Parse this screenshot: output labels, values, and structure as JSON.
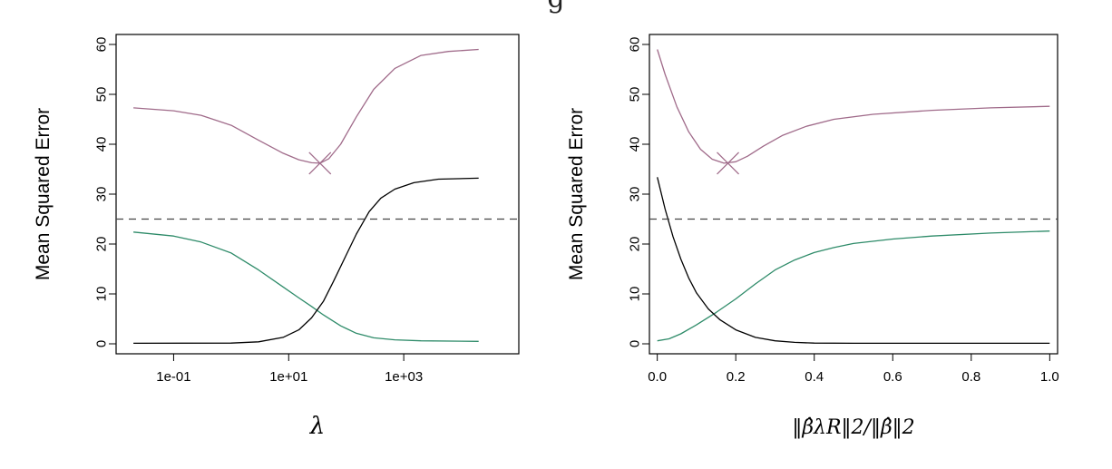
{
  "header": {
    "text": "g"
  },
  "chart_data": [
    {
      "type": "line",
      "xscale": "log",
      "xlabel": "λ",
      "ylabel": "Mean Squared Error",
      "xlim": [
        0.01,
        100000
      ],
      "ylim": [
        -2,
        62
      ],
      "x_ticks": [
        0.1,
        10,
        1000
      ],
      "x_tick_labels": [
        "1e-01",
        "1e+01",
        "1e+03"
      ],
      "y_ticks": [
        0,
        10,
        20,
        30,
        40,
        50,
        60
      ],
      "y_tick_labels": [
        "0",
        "10",
        "20",
        "30",
        "40",
        "50",
        "60"
      ],
      "colors": {
        "test_mse": "#a06b8a",
        "variance": "#2e8b69",
        "bias": "#000000",
        "reference": "#444444"
      },
      "series": [
        {
          "color_key": "test_mse",
          "x": [
            0.02,
            0.1,
            0.3,
            1,
            3,
            8,
            15,
            25,
            35,
            50,
            80,
            150,
            300,
            700,
            2000,
            6000,
            20000
          ],
          "y": [
            47.3,
            46.7,
            45.8,
            43.8,
            40.8,
            38.2,
            36.9,
            36.3,
            36.2,
            37.1,
            40.0,
            45.5,
            51.0,
            55.2,
            57.8,
            58.6,
            59.0
          ]
        },
        {
          "color_key": "variance",
          "x": [
            0.02,
            0.1,
            0.3,
            1,
            3,
            8,
            15,
            25,
            40,
            80,
            150,
            300,
            700,
            2000,
            20000
          ],
          "y": [
            22.4,
            21.6,
            20.4,
            18.2,
            14.8,
            11.4,
            9.2,
            7.5,
            5.8,
            3.6,
            2.1,
            1.2,
            0.8,
            0.6,
            0.5
          ]
        },
        {
          "color_key": "bias",
          "x": [
            0.02,
            1,
            3,
            8,
            15,
            25,
            40,
            60,
            100,
            150,
            250,
            400,
            700,
            1500,
            4000,
            20000
          ],
          "y": [
            0.1,
            0.15,
            0.4,
            1.3,
            2.8,
            5.2,
            8.5,
            12.5,
            17.8,
            22.0,
            26.5,
            29.2,
            31.0,
            32.3,
            33.0,
            33.2
          ]
        },
        {
          "color_key": "reference",
          "dashed": true,
          "x": [
            0.01,
            100000
          ],
          "y": [
            25,
            25
          ]
        }
      ],
      "markers": [
        {
          "x": 35,
          "y": 36.2,
          "shape": "x",
          "color_key": "test_mse"
        }
      ]
    },
    {
      "type": "line",
      "xscale": "linear",
      "xlabel": "‖β̂λR‖2/‖β̂‖2",
      "ylabel": "Mean Squared Error",
      "xlim": [
        -0.02,
        1.02
      ],
      "ylim": [
        -2,
        62
      ],
      "x_ticks": [
        0.0,
        0.2,
        0.4,
        0.6,
        0.8,
        1.0
      ],
      "x_tick_labels": [
        "0.0",
        "0.2",
        "0.4",
        "0.6",
        "0.8",
        "1.0"
      ],
      "y_ticks": [
        0,
        10,
        20,
        30,
        40,
        50,
        60
      ],
      "y_tick_labels": [
        "0",
        "10",
        "20",
        "30",
        "40",
        "50",
        "60"
      ],
      "colors": {
        "test_mse": "#a06b8a",
        "variance": "#2e8b69",
        "bias": "#000000",
        "reference": "#444444"
      },
      "series": [
        {
          "color_key": "test_mse",
          "x": [
            0.0,
            0.02,
            0.05,
            0.08,
            0.11,
            0.14,
            0.17,
            0.2,
            0.23,
            0.27,
            0.32,
            0.38,
            0.45,
            0.55,
            0.7,
            0.85,
            1.0
          ],
          "y": [
            59.0,
            54.0,
            47.5,
            42.5,
            39.0,
            37.0,
            36.2,
            36.5,
            37.6,
            39.6,
            41.8,
            43.6,
            45.0,
            46.0,
            46.8,
            47.3,
            47.6
          ]
        },
        {
          "color_key": "variance",
          "x": [
            0.0,
            0.03,
            0.06,
            0.1,
            0.15,
            0.2,
            0.25,
            0.3,
            0.35,
            0.4,
            0.45,
            0.5,
            0.6,
            0.7,
            0.85,
            1.0
          ],
          "y": [
            0.6,
            1.0,
            2.0,
            3.8,
            6.3,
            9.0,
            12.0,
            14.8,
            16.8,
            18.3,
            19.3,
            20.1,
            21.0,
            21.6,
            22.2,
            22.6
          ]
        },
        {
          "color_key": "bias",
          "x": [
            0.0,
            0.02,
            0.04,
            0.06,
            0.08,
            0.1,
            0.13,
            0.16,
            0.2,
            0.25,
            0.3,
            0.35,
            0.4,
            0.5,
            0.7,
            1.0
          ],
          "y": [
            33.4,
            27.0,
            21.5,
            17.0,
            13.2,
            10.2,
            7.0,
            4.8,
            2.8,
            1.3,
            0.6,
            0.3,
            0.15,
            0.1,
            0.1,
            0.1
          ]
        },
        {
          "color_key": "reference",
          "dashed": true,
          "x": [
            -0.02,
            1.02
          ],
          "y": [
            25,
            25
          ]
        }
      ],
      "markers": [
        {
          "x": 0.18,
          "y": 36.2,
          "shape": "x",
          "color_key": "test_mse"
        }
      ]
    }
  ]
}
